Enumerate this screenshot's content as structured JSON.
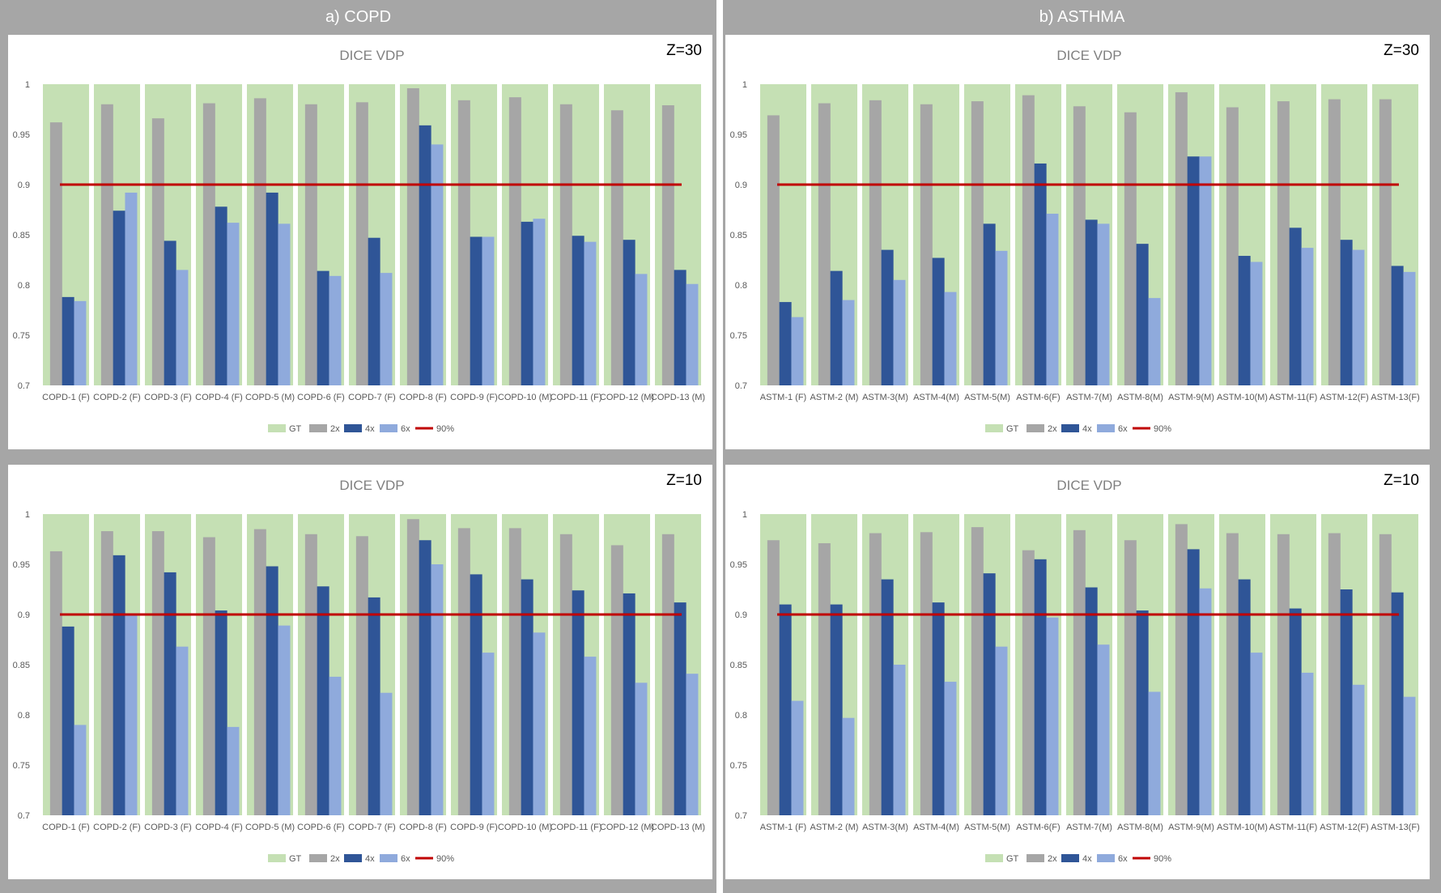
{
  "headers": {
    "left": "a) COPD",
    "right": "b) ASTHMA"
  },
  "colors": {
    "gt": "#c5e0b4",
    "x2": "#a6a6a6",
    "x4": "#2f5597",
    "x6": "#8faadc",
    "threshold": "#c00000"
  },
  "legend": {
    "gt": "GT",
    "x2": "2x",
    "x4": "4x",
    "x6": "6x",
    "threshold": "90%"
  },
  "chart_data": [
    {
      "type": "bar",
      "title": "DICE  VDP",
      "zlabel": "Z=30",
      "ylim": [
        0.7,
        1
      ],
      "yticks": [
        "1",
        "0.95",
        "0.9",
        "0.85",
        "0.8",
        "0.75",
        "0.7"
      ],
      "threshold": 0.9,
      "categories": [
        "COPD-1 (F)",
        "COPD-2 (F)",
        "COPD-3 (F)",
        "COPD-4 (F)",
        "COPD-5 (M)",
        "COPD-6 (F)",
        "COPD-7 (F)",
        "COPD-8 (F)",
        "COPD-9 (F)",
        "COPD-10 (M)",
        "COPD-11 (F)",
        "COPD-12 (M)",
        "COPD-13 (M)"
      ],
      "series": [
        {
          "name": "GT",
          "values": [
            1,
            1,
            1,
            1,
            1,
            1,
            1,
            1,
            1,
            1,
            1,
            1,
            1
          ]
        },
        {
          "name": "2x",
          "values": [
            0.962,
            0.98,
            0.966,
            0.981,
            0.986,
            0.98,
            0.982,
            0.996,
            0.984,
            0.987,
            0.98,
            0.974,
            0.979
          ]
        },
        {
          "name": "4x",
          "values": [
            0.788,
            0.874,
            0.844,
            0.878,
            0.892,
            0.814,
            0.847,
            0.959,
            0.848,
            0.863,
            0.849,
            0.845,
            0.815
          ]
        },
        {
          "name": "6x",
          "values": [
            0.784,
            0.892,
            0.815,
            0.862,
            0.861,
            0.809,
            0.812,
            0.94,
            0.848,
            0.866,
            0.843,
            0.811,
            0.801
          ]
        }
      ]
    },
    {
      "type": "bar",
      "title": "DICE  VDP",
      "zlabel": "Z=30",
      "ylim": [
        0.7,
        1
      ],
      "yticks": [
        "1",
        "0.95",
        "0.9",
        "0.85",
        "0.8",
        "0.75",
        "0.7"
      ],
      "threshold": 0.9,
      "categories": [
        "ASTM-1 (F)",
        "ASTM-2 (M)",
        "ASTM-3(M)",
        "ASTM-4(M)",
        "ASTM-5(M)",
        "ASTM-6(F)",
        "ASTM-7(M)",
        "ASTM-8(M)",
        "ASTM-9(M)",
        "ASTM-10(M)",
        "ASTM-11(F)",
        "ASTM-12(F)",
        "ASTM-13(F)"
      ],
      "series": [
        {
          "name": "GT",
          "values": [
            1,
            1,
            1,
            1,
            1,
            1,
            1,
            1,
            1,
            1,
            1,
            1,
            1
          ]
        },
        {
          "name": "2x",
          "values": [
            0.969,
            0.981,
            0.984,
            0.98,
            0.983,
            0.989,
            0.978,
            0.972,
            0.992,
            0.977,
            0.983,
            0.985,
            0.985
          ]
        },
        {
          "name": "4x",
          "values": [
            0.783,
            0.814,
            0.835,
            0.827,
            0.861,
            0.921,
            0.865,
            0.841,
            0.928,
            0.829,
            0.857,
            0.845,
            0.819
          ]
        },
        {
          "name": "6x",
          "values": [
            0.768,
            0.785,
            0.805,
            0.793,
            0.834,
            0.871,
            0.861,
            0.787,
            0.928,
            0.823,
            0.837,
            0.835,
            0.813
          ]
        }
      ]
    },
    {
      "type": "bar",
      "title": "DICE  VDP",
      "zlabel": "Z=10",
      "ylim": [
        0.7,
        1
      ],
      "yticks": [
        "1",
        "0.95",
        "0.9",
        "0.85",
        "0.8",
        "0.75",
        "0.7"
      ],
      "threshold": 0.9,
      "categories": [
        "COPD-1 (F)",
        "COPD-2 (F)",
        "COPD-3 (F)",
        "COPD-4 (F)",
        "COPD-5 (M)",
        "COPD-6 (F)",
        "COPD-7 (F)",
        "COPD-8 (F)",
        "COPD-9 (F)",
        "COPD-10 (M)",
        "COPD-11 (F)",
        "COPD-12 (M)",
        "COPD-13 (M)"
      ],
      "series": [
        {
          "name": "GT",
          "values": [
            1,
            1,
            1,
            1,
            1,
            1,
            1,
            1,
            1,
            1,
            1,
            1,
            1
          ]
        },
        {
          "name": "2x",
          "values": [
            0.963,
            0.983,
            0.983,
            0.977,
            0.985,
            0.98,
            0.978,
            0.995,
            0.986,
            0.986,
            0.98,
            0.969,
            0.98
          ]
        },
        {
          "name": "4x",
          "values": [
            0.888,
            0.959,
            0.942,
            0.904,
            0.948,
            0.928,
            0.917,
            0.974,
            0.94,
            0.935,
            0.924,
            0.921,
            0.912
          ]
        },
        {
          "name": "6x",
          "values": [
            0.79,
            0.901,
            0.868,
            0.788,
            0.889,
            0.838,
            0.822,
            0.95,
            0.862,
            0.882,
            0.858,
            0.832,
            0.841
          ]
        }
      ]
    },
    {
      "type": "bar",
      "title": "DICE  VDP",
      "zlabel": "Z=10",
      "ylim": [
        0.7,
        1
      ],
      "yticks": [
        "1",
        "0.95",
        "0.9",
        "0.85",
        "0.8",
        "0.75",
        "0.7"
      ],
      "threshold": 0.9,
      "categories": [
        "ASTM-1 (F)",
        "ASTM-2 (M)",
        "ASTM-3(M)",
        "ASTM-4(M)",
        "ASTM-5(M)",
        "ASTM-6(F)",
        "ASTM-7(M)",
        "ASTM-8(M)",
        "ASTM-9(M)",
        "ASTM-10(M)",
        "ASTM-11(F)",
        "ASTM-12(F)",
        "ASTM-13(F)"
      ],
      "series": [
        {
          "name": "GT",
          "values": [
            1,
            1,
            1,
            1,
            1,
            1,
            1,
            1,
            1,
            1,
            1,
            1,
            1
          ]
        },
        {
          "name": "2x",
          "values": [
            0.974,
            0.971,
            0.981,
            0.982,
            0.987,
            0.964,
            0.984,
            0.974,
            0.99,
            0.981,
            0.98,
            0.981,
            0.98
          ]
        },
        {
          "name": "4x",
          "values": [
            0.91,
            0.91,
            0.935,
            0.912,
            0.941,
            0.955,
            0.927,
            0.904,
            0.965,
            0.935,
            0.906,
            0.925,
            0.922
          ]
        },
        {
          "name": "6x",
          "values": [
            0.814,
            0.797,
            0.85,
            0.833,
            0.868,
            0.897,
            0.87,
            0.823,
            0.926,
            0.862,
            0.842,
            0.83,
            0.818
          ]
        }
      ]
    }
  ]
}
